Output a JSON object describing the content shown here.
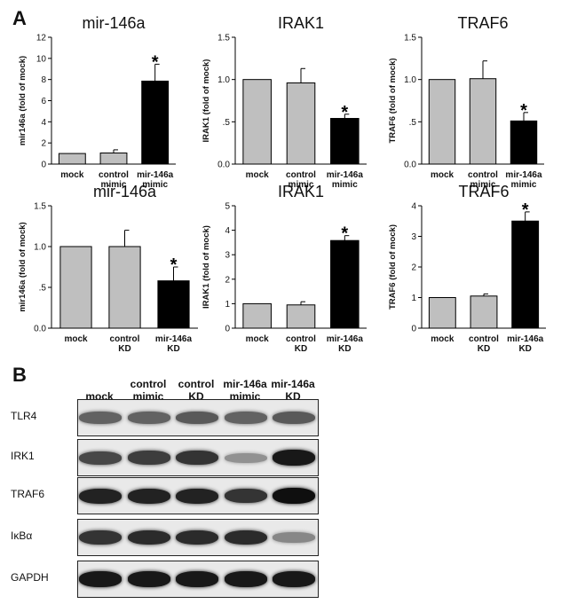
{
  "panels": {
    "a": "A",
    "b": "B"
  },
  "chart_data": [
    {
      "type": "bar",
      "title": "mir-146a",
      "ylabel": "mir146a (fold of mock)",
      "categories": [
        "mock",
        "control mimic",
        "mir-146a mimic"
      ],
      "yticks": [
        "0",
        "2",
        "4",
        "6",
        "8",
        "10",
        "12"
      ],
      "ylim": [
        0,
        12
      ],
      "values": [
        1.0,
        1.05,
        7.85
      ],
      "errors": [
        0,
        0.3,
        1.6
      ],
      "significant": [
        false,
        false,
        true
      ]
    },
    {
      "type": "bar",
      "title": "IRAK1",
      "ylabel": "IRAK1 (fold of mock)",
      "categories": [
        "mock",
        "control mimic",
        "mir-146a mimic"
      ],
      "yticks": [
        "0.0",
        ".5",
        "1.0",
        "1.5"
      ],
      "ylim": [
        0,
        1.5
      ],
      "values": [
        1.0,
        0.96,
        0.54
      ],
      "errors": [
        0,
        0.17,
        0.05
      ],
      "significant": [
        false,
        false,
        true
      ]
    },
    {
      "type": "bar",
      "title": "TRAF6",
      "ylabel": "TRAF6 (fold of mock)",
      "categories": [
        "mock",
        "control mimic",
        "mir-146a mimic"
      ],
      "yticks": [
        "0.0",
        ".5",
        "1.0",
        "1.5"
      ],
      "ylim": [
        0,
        1.5
      ],
      "values": [
        1.0,
        1.01,
        0.51
      ],
      "errors": [
        0,
        0.21,
        0.1
      ],
      "significant": [
        false,
        false,
        true
      ]
    },
    {
      "type": "bar",
      "title": "mir-146a",
      "ylabel": "mir146a (fold of mock)",
      "categories": [
        "mock",
        "control KD",
        "mir-146a KD"
      ],
      "yticks": [
        "0.0",
        ".5",
        "1.0",
        "1.5"
      ],
      "ylim": [
        0,
        1.5
      ],
      "values": [
        1.0,
        1.0,
        0.58
      ],
      "errors": [
        0,
        0.2,
        0.17
      ],
      "significant": [
        false,
        false,
        true
      ]
    },
    {
      "type": "bar",
      "title": "IRAK1",
      "ylabel": "IRAK1 (fold of mock)",
      "categories": [
        "mock",
        "control KD",
        "mir-146a KD"
      ],
      "yticks": [
        "0",
        "1",
        "2",
        "3",
        "4",
        "5"
      ],
      "ylim": [
        0,
        5
      ],
      "values": [
        1.0,
        0.95,
        3.58
      ],
      "errors": [
        0,
        0.13,
        0.2
      ],
      "significant": [
        false,
        false,
        true
      ]
    },
    {
      "type": "bar",
      "title": "TRAF6",
      "ylabel": "TRAF6 (fold of mock)",
      "categories": [
        "mock",
        "control KD",
        "mir-146a KD"
      ],
      "yticks": [
        "0",
        "1",
        "2",
        "3",
        "4"
      ],
      "ylim": [
        0,
        4
      ],
      "values": [
        1.0,
        1.05,
        3.5
      ],
      "errors": [
        0,
        0.07,
        0.3
      ],
      "significant": [
        false,
        false,
        true
      ]
    }
  ],
  "bar_colors": {
    "control": "#bfbfbf",
    "treated": "#000000"
  },
  "significance_marker": "*",
  "blot": {
    "lanes": [
      "mock",
      "control mimic",
      "control KD",
      "mir-146a mimic",
      "mir-146a KD"
    ],
    "rows": [
      {
        "label": "TLR4",
        "intensity": [
          0.55,
          0.55,
          0.6,
          0.55,
          0.6
        ]
      },
      {
        "label": "IRK1",
        "intensity": [
          0.7,
          0.75,
          0.8,
          0.3,
          0.95
        ]
      },
      {
        "label": "TRAF6",
        "intensity": [
          0.9,
          0.9,
          0.9,
          0.8,
          1.0
        ]
      },
      {
        "label": "IκBα",
        "intensity": [
          0.8,
          0.85,
          0.85,
          0.85,
          0.35
        ]
      },
      {
        "label": "GAPDH",
        "intensity": [
          0.95,
          0.95,
          0.95,
          0.95,
          0.95
        ]
      }
    ]
  }
}
